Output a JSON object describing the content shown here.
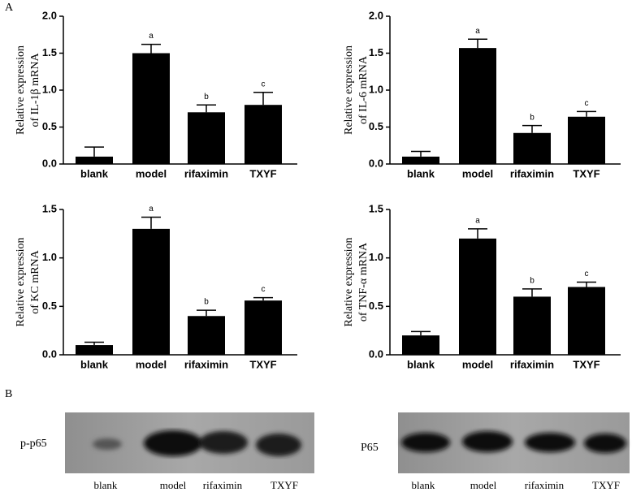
{
  "panel_labels": [
    "A",
    "B"
  ],
  "chart_data": [
    {
      "type": "bar",
      "y_label": [
        "Relative expression",
        "of IL-1β mRNA"
      ],
      "categories": [
        "blank",
        "model",
        "rifaximin",
        "TXYF"
      ],
      "values": [
        0.1,
        1.5,
        0.7,
        0.8
      ],
      "errors": [
        0.13,
        0.12,
        0.1,
        0.17
      ],
      "annotations": [
        null,
        "a",
        "b",
        "c"
      ],
      "color": "#000000",
      "ylim": [
        0,
        2
      ],
      "yticks": [
        {
          "value": 0,
          "label": "0.0"
        },
        0.5,
        {
          "value": 1,
          "label": "1.0"
        },
        1.5,
        {
          "value": 2,
          "label": "2.0"
        }
      ]
    },
    {
      "type": "bar",
      "y_label": [
        "Relative expression",
        "of IL-6 mRNA"
      ],
      "categories": [
        "blank",
        "model",
        "rifaximin",
        "TXYF"
      ],
      "values": [
        0.1,
        1.57,
        0.42,
        0.64
      ],
      "errors": [
        0.07,
        0.12,
        0.1,
        0.07
      ],
      "annotations": [
        null,
        "a",
        "b",
        "c"
      ],
      "color": "#000000",
      "ylim": [
        0,
        2
      ],
      "yticks": [
        {
          "value": 0,
          "label": "0.0"
        },
        0.5,
        {
          "value": 1,
          "label": "1.0"
        },
        1.5,
        {
          "value": 2,
          "label": "2.0"
        }
      ]
    },
    {
      "type": "bar",
      "y_label": [
        "Relative expression",
        "of KC mRNA"
      ],
      "categories": [
        "blank",
        "model",
        "rifaximin",
        "TXYF"
      ],
      "values": [
        0.1,
        1.3,
        0.4,
        0.56
      ],
      "errors": [
        0.03,
        0.12,
        0.06,
        0.03
      ],
      "annotations": [
        null,
        "a",
        "b",
        "c"
      ],
      "color": "#000000",
      "ylim": [
        0,
        1.5
      ],
      "yticks": [
        {
          "value": 0,
          "label": "0.0"
        },
        0.5,
        {
          "value": 1,
          "label": "1.0"
        },
        1.5
      ]
    },
    {
      "type": "bar",
      "y_label": [
        "Relative expression",
        "of TNF-α mRNA"
      ],
      "categories": [
        "blank",
        "model",
        "rifaximin",
        "TXYF"
      ],
      "values": [
        0.2,
        1.2,
        0.6,
        0.7
      ],
      "errors": [
        0.04,
        0.1,
        0.08,
        0.05
      ],
      "annotations": [
        null,
        "a",
        "b",
        "c"
      ],
      "color": "#000000",
      "ylim": [
        0,
        1.5
      ],
      "yticks": [
        {
          "value": 0,
          "label": "0.0"
        },
        0.5,
        {
          "value": 1,
          "label": "1.0"
        },
        1.5
      ]
    }
  ],
  "blots": [
    {
      "label": "p-p65",
      "lanes": [
        "blank",
        "model",
        "rifaximin",
        "TXYF"
      ]
    },
    {
      "label": "P65",
      "lanes": [
        "blank",
        "model",
        "rifaximin",
        "TXYF"
      ]
    }
  ]
}
